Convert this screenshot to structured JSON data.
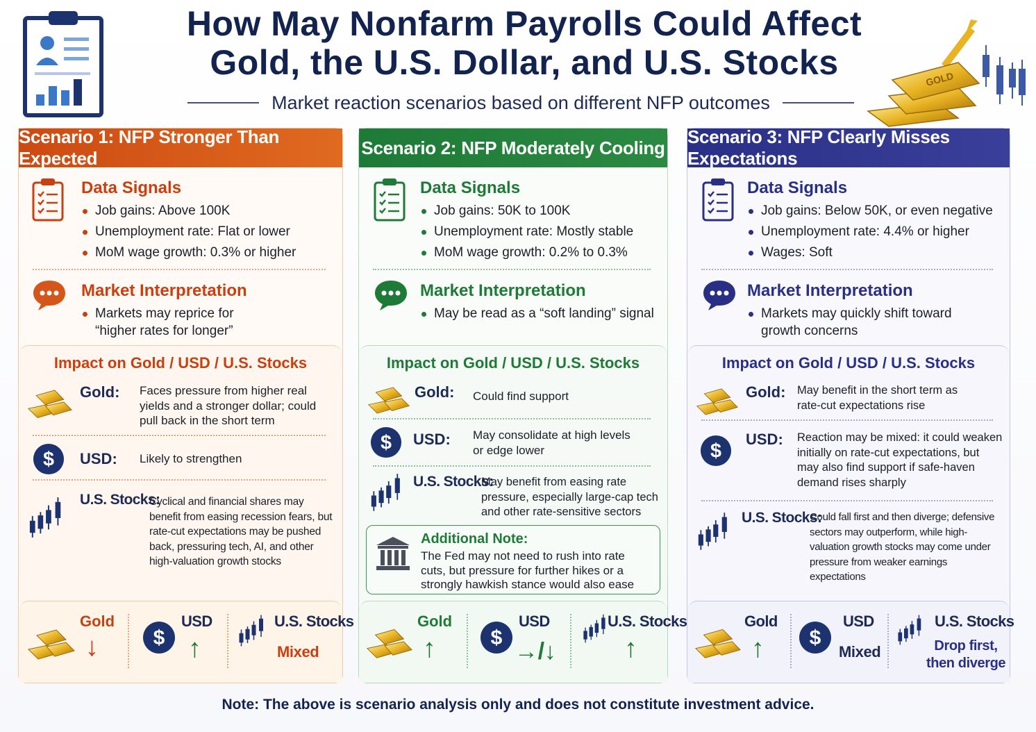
{
  "header": {
    "title_line1": "How May Nonfarm Payrolls Could Affect",
    "title_line2": "Gold, the U.S. Dollar, and U.S. Stocks",
    "subtitle": "Market reaction scenarios based on different NFP outcomes",
    "gold_bar_text": "GOLD"
  },
  "labels": {
    "data_signals": "Data Signals",
    "market_interpretation": "Market Interpretation",
    "impact": "Impact on Gold / USD / U.S. Stocks",
    "gold": "Gold:",
    "usd": "USD:",
    "stocks": "U.S. Stocks:",
    "sum_gold": "Gold",
    "sum_usd": "USD",
    "sum_stocks": "U.S. Stocks"
  },
  "scenarios": [
    {
      "title": "Scenario 1: NFP Stronger Than Expected",
      "signals": [
        "Job gains:  Above 100K",
        "Unemployment rate: Flat or lower",
        "MoM wage growth: 0.3% or higher"
      ],
      "interpretation": [
        "Markets may reprice for",
        "“higher rates for longer”"
      ],
      "gold": "Faces pressure from higher real yields and a stronger dollar; could pull back in the short term",
      "usd": "Likely to strengthen",
      "stocks": "Cyclical and financial shares may benefit from easing recession fears, but rate-cut expectations may be pushed back, pressuring tech, AI, and other high-valuation growth stocks",
      "summary": {
        "gold": "↓",
        "usd": "↑",
        "stocks": "Mixed"
      },
      "color": "#c8400f"
    },
    {
      "title": "Scenario 2: NFP Moderately Cooling",
      "signals": [
        "Job gains:  50K to 100K",
        "Unemployment rate: Mostly stable",
        "MoM wage growth: 0.2% to 0.3%"
      ],
      "interpretation": [
        "May be read as a “soft landing” signal"
      ],
      "gold": "Could find support",
      "usd": "May consolidate at high levels or edge lower",
      "stocks": "May benefit from easing rate pressure, especially large-cap tech and other rate-sensitive sectors",
      "note_title": "Additional Note:",
      "note": "The Fed may not need to rush into rate cuts, but pressure for further hikes or a strongly hawkish stance would also ease",
      "summary": {
        "gold": "↑",
        "usd": "→/↓",
        "stocks": "↑"
      },
      "color": "#1e7a37"
    },
    {
      "title": "Scenario 3: NFP Clearly Misses Expectations",
      "signals": [
        "Job gains: Below 50K, or even negative",
        "Unemployment rate: 4.4% or higher",
        "Wages: Soft"
      ],
      "interpretation": [
        "Markets may quickly shift toward",
        "growth concerns"
      ],
      "gold": "May benefit in the short term as rate-cut expectations rise",
      "usd": "Reaction may be mixed: it could weaken initially on rate-cut expectations, but may also find support if safe-haven demand rises sharply",
      "stocks": "Could fall first and then diverge; defensive sectors may outperform, while high-valuation growth stocks may come under pressure from weaker earnings expectations",
      "summary": {
        "gold": "↑",
        "usd": "Mixed",
        "stocks_line1": "Drop first,",
        "stocks_line2": "then diverge"
      },
      "color": "#2a2f86"
    }
  ],
  "footer": "Note: The above is scenario analysis only and does not constitute investment advice."
}
